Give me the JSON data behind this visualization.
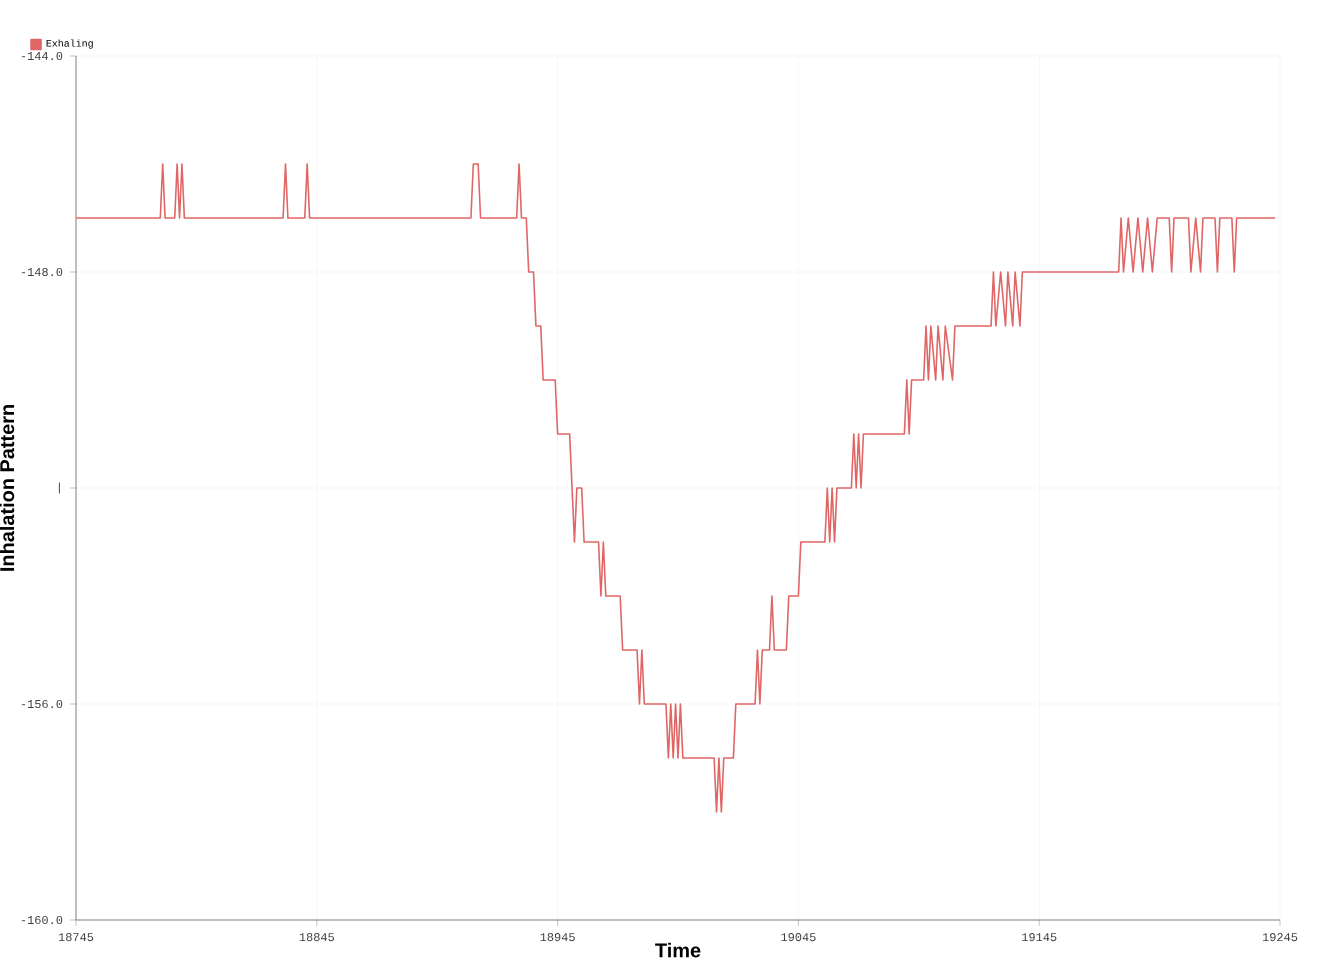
{
  "chart_data": {
    "type": "line",
    "xlabel": "Time",
    "ylabel": "Inhalation Pattern",
    "xlim": [
      18745,
      19245
    ],
    "xticks": [
      18745,
      18845,
      18945,
      19045,
      19145,
      19245
    ],
    "ylim": [
      -160,
      -144
    ],
    "yticks": [
      {
        "value": -160,
        "label": "-160.0"
      },
      {
        "value": -156,
        "label": "-156.0"
      },
      {
        "value": -152,
        "label": "|"
      },
      {
        "value": -148,
        "label": "-148.0"
      },
      {
        "value": -144,
        "label": "-144.0"
      }
    ],
    "grid": true,
    "legend": "top left",
    "marker": "none",
    "line_style": "solid",
    "series": [
      {
        "name": "Exhaling",
        "color": "#e06666",
        "x": [
          18745,
          18780,
          18781,
          18782,
          18786,
          18787,
          18788,
          18789,
          18790,
          18831,
          18832,
          18833,
          18840,
          18841,
          18842,
          18909,
          18910,
          18912,
          18913,
          18928,
          18929,
          18930,
          18932,
          18933,
          18935,
          18936,
          18938,
          18939,
          18944,
          18945,
          18950,
          18951,
          18952,
          18953,
          18955,
          18956,
          18962,
          18963,
          18964,
          18965,
          18971,
          18972,
          18978,
          18979,
          18980,
          18981,
          18990,
          18991,
          18992,
          18993,
          18994,
          18995,
          18996,
          18997,
          19010,
          19011,
          19012,
          19013,
          19014,
          19018,
          19019,
          19027,
          19028,
          19029,
          19030,
          19033,
          19034,
          19035,
          19040,
          19041,
          19045,
          19046,
          19056,
          19057,
          19058,
          19059,
          19060,
          19061,
          19067,
          19068,
          19069,
          19070,
          19071,
          19072,
          19089,
          19090,
          19091,
          19092,
          19097,
          19098,
          19099,
          19100,
          19102,
          19103,
          19105,
          19106,
          19109,
          19110,
          19125,
          19126,
          19127,
          19129,
          19131,
          19132,
          19134,
          19135,
          19137,
          19138,
          19178,
          19179,
          19180,
          19182,
          19184,
          19186,
          19188,
          19190,
          19192,
          19194,
          19199,
          19200,
          19201,
          19207,
          19208,
          19210,
          19212,
          19213,
          19218,
          19219,
          19220,
          19225,
          19226,
          19227,
          19243
        ],
        "values": [
          -147,
          -147,
          -146,
          -147,
          -147,
          -146,
          -147,
          -146,
          -147,
          -147,
          -146,
          -147,
          -147,
          -146,
          -147,
          -147,
          -146,
          -146,
          -147,
          -147,
          -146,
          -147,
          -147,
          -148,
          -148,
          -149,
          -149,
          -150,
          -150,
          -151,
          -151,
          -152,
          -153,
          -152,
          -152,
          -153,
          -153,
          -154,
          -153,
          -154,
          -154,
          -155,
          -155,
          -156,
          -155,
          -156,
          -156,
          -157,
          -156,
          -157,
          -156,
          -157,
          -156,
          -157,
          -157,
          -158,
          -157,
          -158,
          -157,
          -157,
          -156,
          -156,
          -155,
          -156,
          -155,
          -155,
          -154,
          -155,
          -155,
          -154,
          -154,
          -153,
          -153,
          -152,
          -153,
          -152,
          -153,
          -152,
          -152,
          -151,
          -152,
          -151,
          -152,
          -151,
          -151,
          -150,
          -151,
          -150,
          -150,
          -149,
          -150,
          -149,
          -150,
          -149,
          -150,
          -149,
          -150,
          -149,
          -149,
          -148,
          -149,
          -148,
          -149,
          -148,
          -149,
          -148,
          -149,
          -148,
          -148,
          -147,
          -148,
          -147,
          -148,
          -147,
          -148,
          -147,
          -148,
          -147,
          -147,
          -148,
          -147,
          -147,
          -148,
          -147,
          -148,
          -147,
          -147,
          -148,
          -147,
          -147,
          -148,
          -147,
          -147
        ]
      }
    ]
  }
}
